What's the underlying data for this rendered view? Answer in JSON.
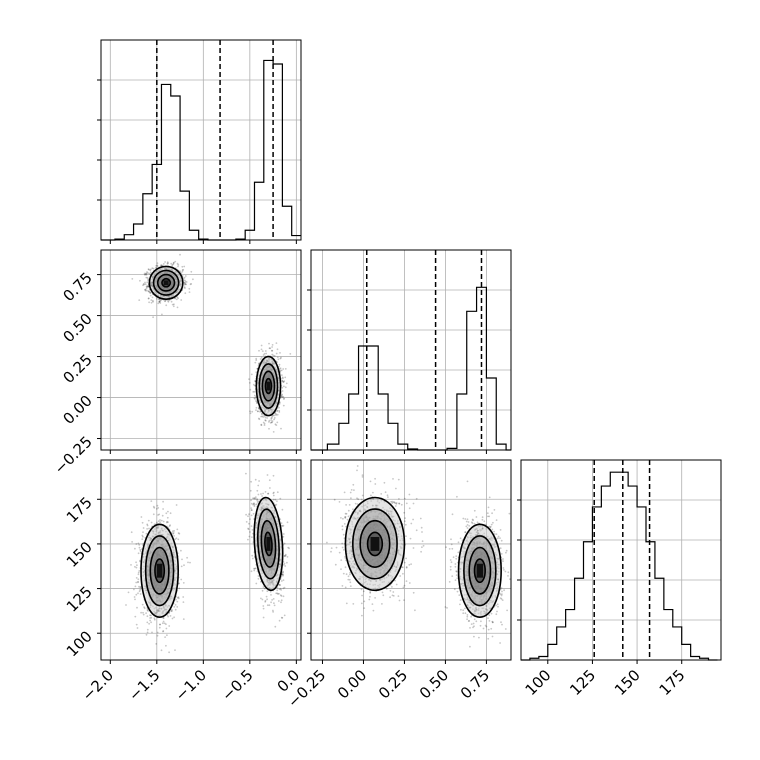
{
  "chart_data": {
    "type": "corner",
    "parameters": [
      {
        "id": "p0",
        "range": [
          -2.1,
          0.05
        ],
        "ticks": [
          -2.0,
          -1.5,
          -1.0,
          -0.5,
          0.0
        ],
        "tick_labels": [
          "−2.0",
          "−1.5",
          "−1.0",
          "−0.5",
          "0.0"
        ]
      },
      {
        "id": "p1",
        "range": [
          -0.32,
          0.9
        ],
        "ticks": [
          -0.25,
          0.0,
          0.25,
          0.5,
          0.75
        ],
        "tick_labels": [
          "−0.25",
          "0.00",
          "0.25",
          "0.50",
          "0.75"
        ]
      },
      {
        "id": "p2",
        "range": [
          85,
          197
        ],
        "ticks": [
          100,
          125,
          150,
          175
        ],
        "tick_labels": [
          "100",
          "125",
          "150",
          "175"
        ]
      }
    ],
    "histograms": [
      {
        "param": 0,
        "bin_edges": [
          -2.1,
          -1.95,
          -1.85,
          -1.75,
          -1.65,
          -1.55,
          -1.45,
          -1.35,
          -1.25,
          -1.15,
          -1.05,
          -0.95,
          -0.85,
          -0.75,
          -0.65,
          -0.55,
          -0.45,
          -0.35,
          -0.25,
          -0.15,
          -0.05,
          0.05
        ],
        "counts": [
          0,
          10,
          60,
          180,
          520,
          850,
          1750,
          1620,
          550,
          110,
          10,
          0,
          0,
          0,
          10,
          110,
          650,
          2020,
          1980,
          380,
          50
        ],
        "ylim": [
          0,
          2250
        ],
        "quantiles": [
          -1.5,
          -0.82,
          -0.25
        ]
      },
      {
        "param": 1,
        "bin_edges": [
          -0.32,
          -0.22,
          -0.15,
          -0.09,
          -0.03,
          0.03,
          0.09,
          0.15,
          0.21,
          0.27,
          0.33,
          0.39,
          0.45,
          0.51,
          0.57,
          0.63,
          0.69,
          0.75,
          0.81,
          0.87,
          0.9
        ],
        "counts": [
          0,
          110,
          500,
          1050,
          1950,
          1950,
          1050,
          500,
          110,
          20,
          0,
          0,
          0,
          30,
          1050,
          2600,
          3050,
          1350,
          110,
          0
        ],
        "ylim": [
          0,
          3750
        ],
        "quantiles": [
          0.02,
          0.44,
          0.72
        ]
      },
      {
        "param": 2,
        "bin_edges": [
          85,
          90,
          95,
          100,
          105,
          110,
          115,
          120,
          125,
          130,
          135,
          140,
          145,
          150,
          155,
          160,
          165,
          170,
          175,
          180,
          185,
          190,
          195
        ],
        "counts": [
          0,
          10,
          20,
          90,
          190,
          290,
          470,
          680,
          880,
          1000,
          1080,
          1080,
          1000,
          880,
          680,
          470,
          290,
          190,
          90,
          20,
          10,
          0
        ],
        "ylim": [
          0,
          1150
        ],
        "quantiles": [
          126,
          142,
          157
        ]
      }
    ],
    "joint_panels": [
      {
        "x_param": 0,
        "y_param": 1,
        "modes": [
          {
            "center": [
              -1.4,
              0.7
            ],
            "sd": [
              0.09,
              0.05
            ],
            "rho": 0.0
          },
          {
            "center": [
              -0.3,
              0.07
            ],
            "sd": [
              0.065,
              0.09
            ],
            "rho": 0.0
          }
        ]
      },
      {
        "x_param": 0,
        "y_param": 2,
        "modes": [
          {
            "center": [
              -1.47,
              135
            ],
            "sd": [
              0.1,
              13.0
            ],
            "rho": 0.0
          },
          {
            "center": [
              -0.3,
              150
            ],
            "sd": [
              0.075,
              13.0
            ],
            "rho": -0.3
          }
        ]
      },
      {
        "x_param": 1,
        "y_param": 2,
        "modes": [
          {
            "center": [
              0.07,
              150
            ],
            "sd": [
              0.09,
              13.0
            ],
            "rho": 0.0
          },
          {
            "center": [
              0.71,
              135
            ],
            "sd": [
              0.065,
              13.0
            ],
            "rho": 0.0
          }
        ]
      }
    ],
    "contour_levels_sigma": [
      0.5,
      1.0,
      1.5,
      2.0
    ],
    "grid": true
  }
}
